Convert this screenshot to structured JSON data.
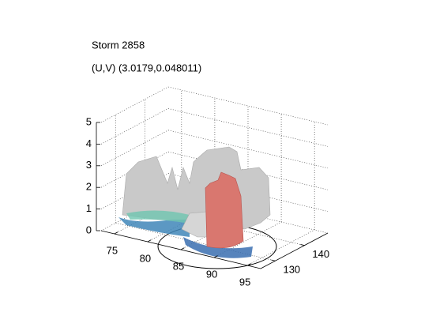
{
  "chart_data": {
    "type": "surface3d",
    "title": "Storm 2858",
    "subtitle": "(U,V) (3.0179,0.048011)",
    "xlim": [
      73,
      97
    ],
    "xticks": [
      75,
      80,
      85,
      90,
      95
    ],
    "ylim": [
      125,
      148
    ],
    "yticks": [
      130,
      140
    ],
    "zlim": [
      0,
      5
    ],
    "zticks": [
      0,
      1,
      2,
      3,
      4,
      5
    ],
    "grid": true
  }
}
